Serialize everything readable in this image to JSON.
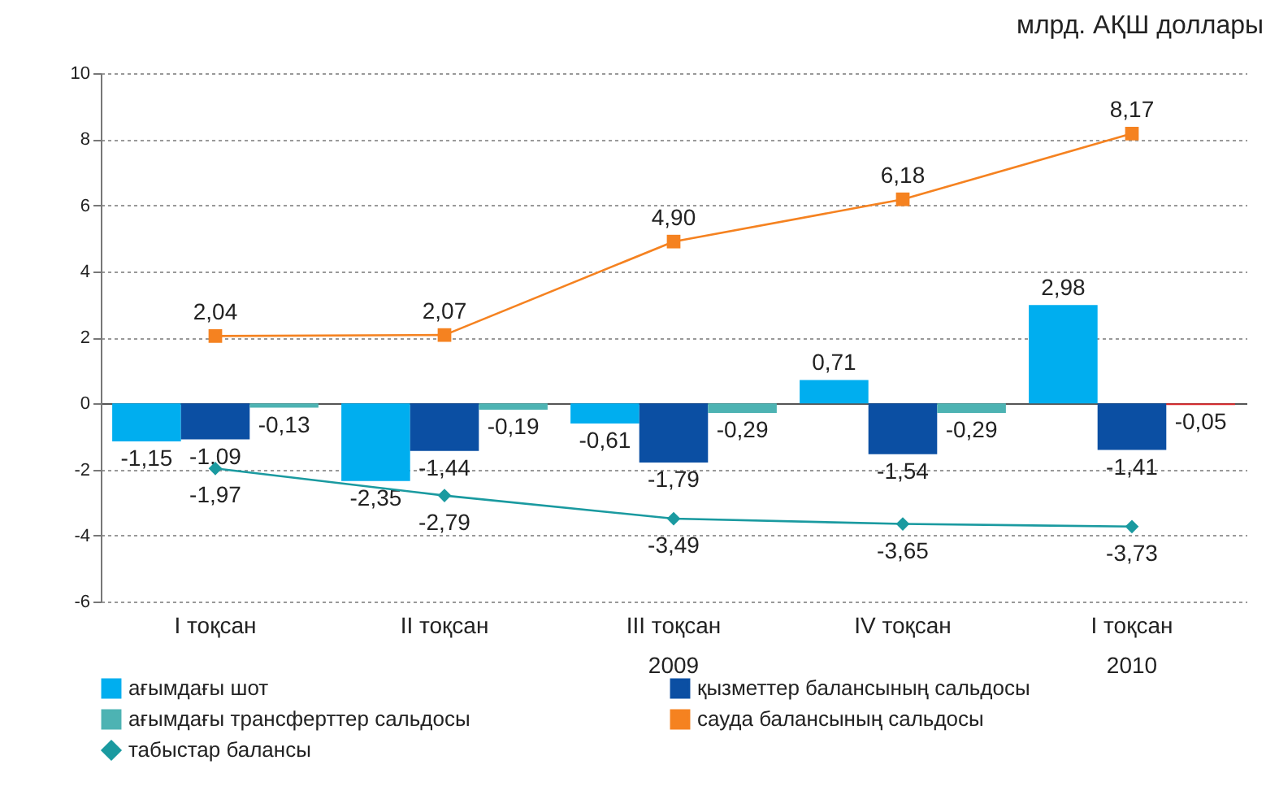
{
  "chart_data": {
    "type": "bar",
    "ylabel": "млрд. АҚШ доллары",
    "categories": [
      "I тоқсан",
      "II тоқсан",
      "III тоқсан",
      "IV тоқсан",
      "I тоқсан"
    ],
    "annotations": [
      "2009",
      "2010"
    ],
    "ylim": [
      -6,
      10
    ],
    "yticks": [
      -6,
      -4,
      -2,
      0,
      2,
      4,
      6,
      8,
      10
    ],
    "grid": "y",
    "legend": "bottom",
    "series": [
      {
        "name": "ағымдағы шот",
        "color": "#00aeef",
        "values": [
          -1.15,
          -2.35,
          -0.61,
          0.71,
          2.98
        ],
        "value_labels": [
          "-1,15",
          "-2,35",
          "-0,61",
          "0,71",
          "2,98"
        ]
      },
      {
        "name": "қызметтер балансының сальдосы",
        "color": "#0b4fa3",
        "values": [
          -1.09,
          -1.44,
          -1.79,
          -1.54,
          -1.41
        ],
        "value_labels": [
          "-1,09",
          "-1,44",
          "-1,79",
          "-1,54",
          "-1,41"
        ]
      },
      {
        "name": "ағымдағы трансферттер сальдосы",
        "color": "#4db3b3",
        "colors": [
          "#4db3b3",
          "#4db3b3",
          "#4db3b3",
          "#4db3b3",
          "#d9262a"
        ],
        "values": [
          -0.13,
          -0.19,
          -0.29,
          -0.29,
          -0.05
        ],
        "value_labels": [
          "-0,13",
          "-0,19",
          "-0,29",
          "-0,29",
          "-0,05"
        ]
      },
      {
        "name": "сауда балансының сальдосы",
        "type": "line",
        "color": "#f58220",
        "marker": "square",
        "values": [
          2.04,
          2.07,
          4.9,
          6.18,
          8.17
        ],
        "value_labels": [
          "2,04",
          "2,07",
          "4,90",
          "6,18",
          "8,17"
        ]
      },
      {
        "name": "табыстар балансы",
        "type": "line",
        "color": "#1a9aa0",
        "marker": "diamond",
        "values": [
          -1.97,
          -2.79,
          -3.49,
          -3.65,
          -3.73
        ],
        "value_labels": [
          "-1,97",
          "-2,79",
          "-3,49",
          "-3,65",
          "-3,73"
        ]
      }
    ]
  }
}
